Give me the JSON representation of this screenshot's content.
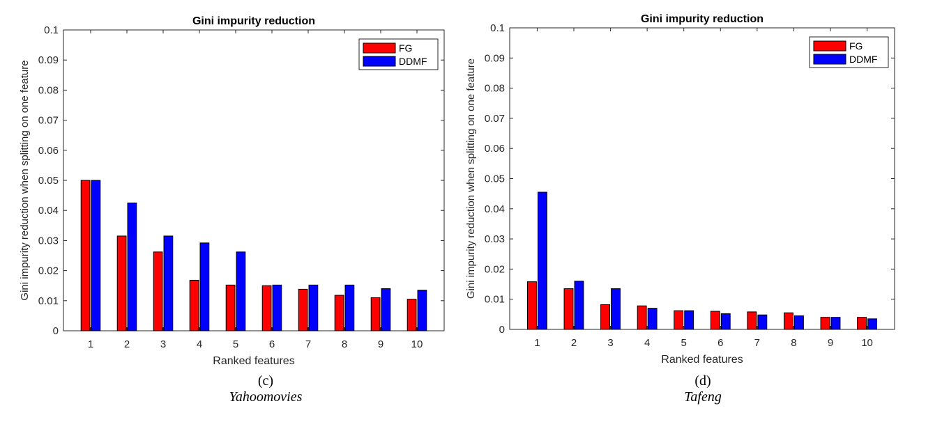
{
  "chart_data": [
    {
      "type": "bar",
      "title": "Gini impurity reduction",
      "xlabel": "Ranked features",
      "ylabel": "Gini impurity reduction when splitting on one feature",
      "categories": [
        "1",
        "2",
        "3",
        "4",
        "5",
        "6",
        "7",
        "8",
        "9",
        "10"
      ],
      "ylim": [
        0,
        0.1
      ],
      "yticks": [
        "0",
        "0.01",
        "0.02",
        "0.03",
        "0.04",
        "0.05",
        "0.06",
        "0.07",
        "0.08",
        "0.09",
        "0.1"
      ],
      "series": [
        {
          "name": "FG",
          "color": "#ff0000",
          "values": [
            0.05,
            0.0315,
            0.0262,
            0.0168,
            0.0152,
            0.015,
            0.0138,
            0.0118,
            0.011,
            0.0105
          ]
        },
        {
          "name": "DDMF",
          "color": "#0000ff",
          "values": [
            0.05,
            0.0425,
            0.0315,
            0.0292,
            0.0262,
            0.0152,
            0.0152,
            0.0152,
            0.014,
            0.0135
          ]
        }
      ],
      "legend": "top-right",
      "grid": false,
      "panel_label": "(c)",
      "dataset": "Yahoomovies"
    },
    {
      "type": "bar",
      "title": "Gini impurity reduction",
      "xlabel": "Ranked features",
      "ylabel": "Gini impurity reduction when splitting on one feature",
      "categories": [
        "1",
        "2",
        "3",
        "4",
        "5",
        "6",
        "7",
        "8",
        "9",
        "10"
      ],
      "ylim": [
        0,
        0.1
      ],
      "yticks": [
        "0",
        "0.01",
        "0.02",
        "0.03",
        "0.04",
        "0.05",
        "0.06",
        "0.07",
        "0.08",
        "0.09",
        "0.1"
      ],
      "series": [
        {
          "name": "FG",
          "color": "#ff0000",
          "values": [
            0.0158,
            0.0135,
            0.0082,
            0.0078,
            0.0062,
            0.006,
            0.0058,
            0.0055,
            0.004,
            0.004
          ]
        },
        {
          "name": "DDMF",
          "color": "#0000ff",
          "values": [
            0.0455,
            0.016,
            0.0135,
            0.007,
            0.0062,
            0.0052,
            0.0048,
            0.0045,
            0.004,
            0.0035
          ]
        }
      ],
      "legend": "top-right",
      "grid": false,
      "panel_label": "(d)",
      "dataset": "Tafeng"
    }
  ]
}
